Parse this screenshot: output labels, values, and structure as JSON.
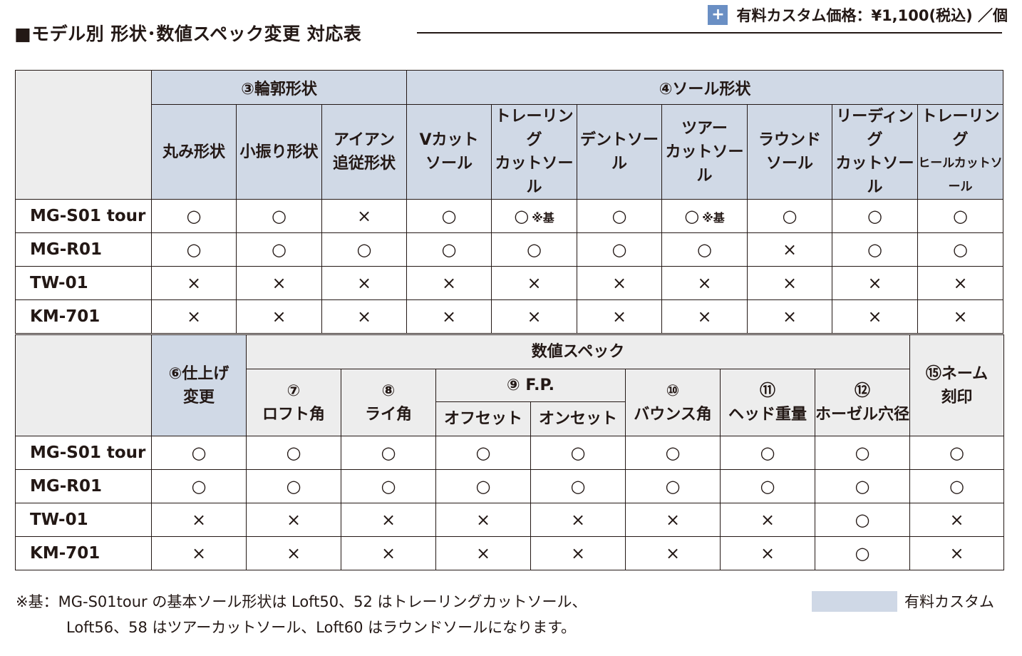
{
  "title": "■モデル別 形状･数値スペック変更 対応表",
  "price": {
    "icon": "plus-icon",
    "plus_glyph": "+",
    "label": "有料カスタム価格：¥1,100(税込) ／個",
    "color": "#6a8fc4"
  },
  "colors": {
    "paid_custom": "#d0d9e6",
    "gray_header": "#ededed"
  },
  "table1": {
    "groups": [
      "③輪郭形状",
      "④ソール形状"
    ],
    "columns": [
      [
        "丸み形状"
      ],
      [
        "小振り形状"
      ],
      [
        "アイアン",
        "追従形状"
      ],
      [
        "Vカット",
        "ソール"
      ],
      [
        "トレーリング",
        "カットソール"
      ],
      [
        "デントソール"
      ],
      [
        "ツアー",
        "カットソール"
      ],
      [
        "ラウンド",
        "ソール"
      ],
      [
        "リーディング",
        "カットソール"
      ],
      [
        "トレーリング",
        "ヒールカットソール"
      ]
    ],
    "rows": [
      {
        "model": "MG-S01 tour",
        "cells": [
          [
            "○",
            ""
          ],
          [
            "○",
            ""
          ],
          [
            "×",
            ""
          ],
          [
            "○",
            ""
          ],
          [
            "○",
            "※基"
          ],
          [
            "○",
            ""
          ],
          [
            "○",
            "※基"
          ],
          [
            "○",
            ""
          ],
          [
            "○",
            ""
          ],
          [
            "○",
            ""
          ]
        ]
      },
      {
        "model": "MG-R01",
        "cells": [
          [
            "○",
            ""
          ],
          [
            "○",
            ""
          ],
          [
            "○",
            ""
          ],
          [
            "○",
            ""
          ],
          [
            "○",
            ""
          ],
          [
            "○",
            ""
          ],
          [
            "○",
            ""
          ],
          [
            "×",
            ""
          ],
          [
            "○",
            ""
          ],
          [
            "○",
            ""
          ]
        ]
      },
      {
        "model": "TW-01",
        "cells": [
          [
            "×",
            ""
          ],
          [
            "×",
            ""
          ],
          [
            "×",
            ""
          ],
          [
            "×",
            ""
          ],
          [
            "×",
            ""
          ],
          [
            "×",
            ""
          ],
          [
            "×",
            ""
          ],
          [
            "×",
            ""
          ],
          [
            "×",
            ""
          ],
          [
            "×",
            ""
          ]
        ]
      },
      {
        "model": "KM-701",
        "cells": [
          [
            "×",
            ""
          ],
          [
            "×",
            ""
          ],
          [
            "×",
            ""
          ],
          [
            "×",
            ""
          ],
          [
            "×",
            ""
          ],
          [
            "×",
            ""
          ],
          [
            "×",
            ""
          ],
          [
            "×",
            ""
          ],
          [
            "×",
            ""
          ],
          [
            "×",
            ""
          ]
        ]
      }
    ]
  },
  "table2": {
    "finish": [
      "⑥仕上げ",
      "変更"
    ],
    "numeric_group": "数値スペック",
    "engrave": [
      "⑮ネーム",
      "刻印"
    ],
    "loft": [
      "⑦",
      "ロフト角"
    ],
    "lie": [
      "⑧",
      "ライ角"
    ],
    "fp": "⑨ F.P.",
    "offset": "オフセット",
    "onset": "オンセット",
    "bounce": [
      "⑩",
      "バウンス角"
    ],
    "head": [
      "⑪",
      "ヘッド重量"
    ],
    "hosel": [
      "⑫",
      "ホーゼル穴径"
    ],
    "rows": [
      {
        "model": "MG-S01 tour",
        "cells": [
          "○",
          "○",
          "○",
          "○",
          "○",
          "○",
          "○",
          "○",
          "○"
        ]
      },
      {
        "model": "MG-R01",
        "cells": [
          "○",
          "○",
          "○",
          "○",
          "○",
          "○",
          "○",
          "○",
          "○"
        ]
      },
      {
        "model": "TW-01",
        "cells": [
          "×",
          "×",
          "×",
          "×",
          "×",
          "×",
          "×",
          "○",
          "×"
        ]
      },
      {
        "model": "KM-701",
        "cells": [
          "×",
          "×",
          "×",
          "×",
          "×",
          "×",
          "×",
          "○",
          "×"
        ]
      }
    ]
  },
  "footnote": {
    "line1": "※基：MG-S01tour の基本ソール形状は Loft50、52 はトレーリングカットソール、",
    "line2": "Loft56、58 はツアーカットソール、Loft60 はラウンドソールになります。"
  },
  "legend": {
    "label": "有料カスタム"
  }
}
